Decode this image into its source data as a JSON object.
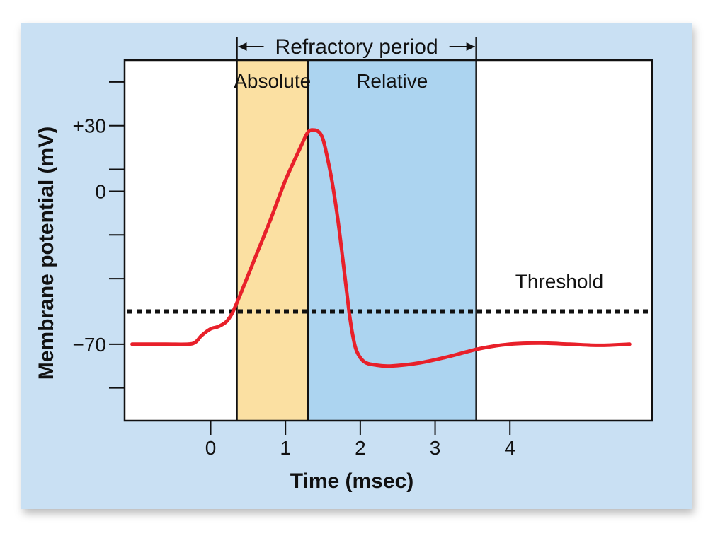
{
  "colors": {
    "panel_bg": "#c9e0f3",
    "plot_bg": "#ffffff",
    "absolute_band": "#fbe0a2",
    "relative_band": "#acd4f0",
    "trace": "#e8202a",
    "threshold_line": "#111111"
  },
  "header": {
    "refractory_label": "Refractory period",
    "absolute_label": "Absolute",
    "relative_label": "Relative"
  },
  "threshold_label": "Threshold",
  "chart_data": {
    "type": "line",
    "xlabel": "Time (msec)",
    "ylabel": "Membrane potential (mV)",
    "xlim": [
      -1.15,
      5.9
    ],
    "ylim": [
      -105,
      60
    ],
    "x_ticks": [
      {
        "value": 0,
        "label": "0"
      },
      {
        "value": 1,
        "label": "1"
      },
      {
        "value": 2,
        "label": "2"
      },
      {
        "value": 3,
        "label": "3"
      },
      {
        "value": 4,
        "label": "4"
      }
    ],
    "y_ticks_labeled": [
      {
        "value": 30,
        "label": "+30"
      },
      {
        "value": 0,
        "label": "0"
      },
      {
        "value": -70,
        "label": "−70"
      }
    ],
    "y_ticks_minor": [
      50,
      10,
      -20,
      -40,
      -90
    ],
    "threshold_mv": -55,
    "refractory": {
      "absolute": [
        0.35,
        1.3
      ],
      "relative": [
        1.3,
        3.55
      ]
    },
    "series": [
      {
        "x": [
          -1.05,
          -0.6,
          -0.3,
          -0.2,
          -0.12,
          0.0,
          0.1,
          0.2,
          0.25,
          0.3,
          0.4,
          0.6,
          0.8,
          1.0,
          1.2,
          1.3,
          1.38,
          1.45,
          1.5,
          1.55,
          1.62,
          1.7,
          1.78,
          1.85,
          1.9,
          1.95,
          2.05,
          2.2,
          2.4,
          2.8,
          3.2,
          3.6,
          4.0,
          4.4,
          4.8,
          5.2,
          5.6
        ],
        "y": [
          -70,
          -70,
          -70,
          -69,
          -66,
          -63,
          -62,
          -60,
          -58,
          -55,
          -47,
          -30,
          -13,
          5,
          20,
          27,
          28,
          27,
          24,
          17,
          5,
          -13,
          -35,
          -55,
          -66,
          -73,
          -78,
          -79.5,
          -80,
          -78.5,
          -75.5,
          -72,
          -70,
          -69.5,
          -70,
          -70.5,
          -70
        ]
      }
    ]
  }
}
